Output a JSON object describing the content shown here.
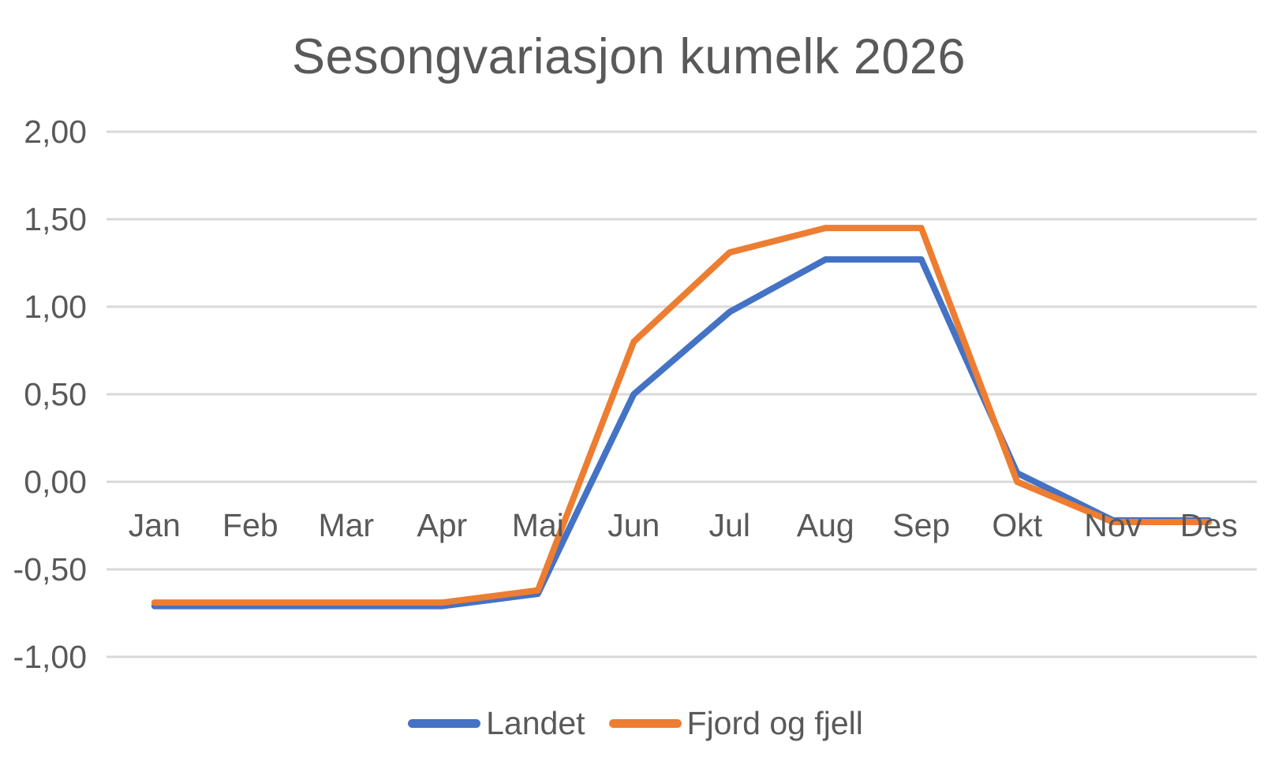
{
  "chart_data": {
    "type": "line",
    "title": "Sesongvariasjon kumelk 2026",
    "categories": [
      "Jan",
      "Feb",
      "Mar",
      "Apr",
      "Mai",
      "Jun",
      "Jul",
      "Aug",
      "Sep",
      "Okt",
      "Nov",
      "Des"
    ],
    "series": [
      {
        "name": "Landet",
        "color": "#4472C4",
        "values": [
          -0.71,
          -0.71,
          -0.71,
          -0.71,
          -0.64,
          0.5,
          0.97,
          1.27,
          1.27,
          0.05,
          -0.22,
          -0.22
        ]
      },
      {
        "name": "Fjord og fjell",
        "color": "#ED7D31",
        "values": [
          -0.69,
          -0.69,
          -0.69,
          -0.69,
          -0.62,
          0.8,
          1.31,
          1.45,
          1.45,
          0.0,
          -0.23,
          -0.23
        ]
      }
    ],
    "y_ticks": [
      {
        "label": "2,00",
        "value": 2.0
      },
      {
        "label": "1,50",
        "value": 1.5
      },
      {
        "label": "1,00",
        "value": 1.0
      },
      {
        "label": "0,50",
        "value": 0.5
      },
      {
        "label": "0,00",
        "value": 0.0
      },
      {
        "label": "-0,50",
        "value": -0.5
      },
      {
        "label": "-1,00",
        "value": -1.0
      }
    ],
    "ylim": [
      -1.25,
      2.0
    ],
    "xlabel": "",
    "ylabel": "",
    "grid": true,
    "legend_position": "bottom",
    "decimal_separator": ","
  },
  "colors": {
    "background": "#FFFFFF",
    "text": "#595959",
    "gridline": "#D9D9D9"
  }
}
